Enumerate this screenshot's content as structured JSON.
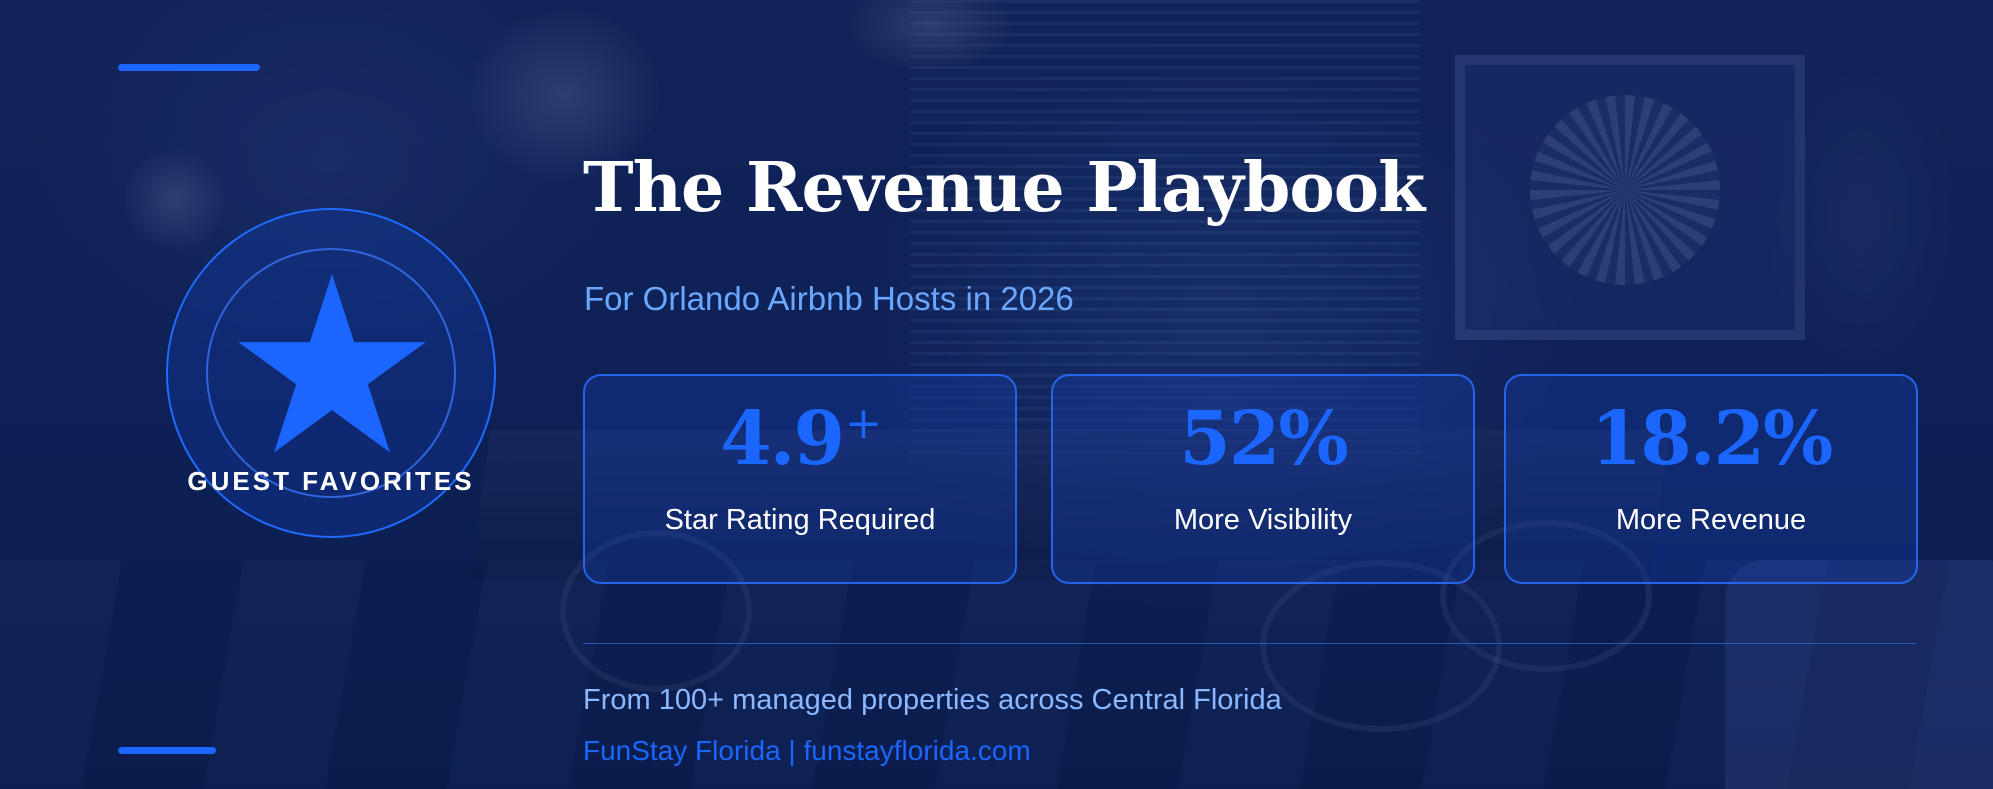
{
  "badge": {
    "label": "GUEST FAVORITES",
    "icon": "star-icon"
  },
  "title": "The Revenue Playbook",
  "subtitle": "For Orlando Airbnb Hosts in 2026",
  "stats": [
    {
      "value": "4.9",
      "suffix": "+",
      "label": "Star Rating Required"
    },
    {
      "value": "52%",
      "label": "More Visibility"
    },
    {
      "value": "18.2%",
      "label": "More Revenue"
    }
  ],
  "footer": {
    "tagline": "From 100+ managed properties across Central Florida",
    "brand": "FunStay Florida | funstayflorida.com"
  },
  "colors": {
    "accent": "#1a66ff",
    "background": "#112456",
    "subtitle": "#6aa7ff",
    "text": "#ffffff"
  }
}
